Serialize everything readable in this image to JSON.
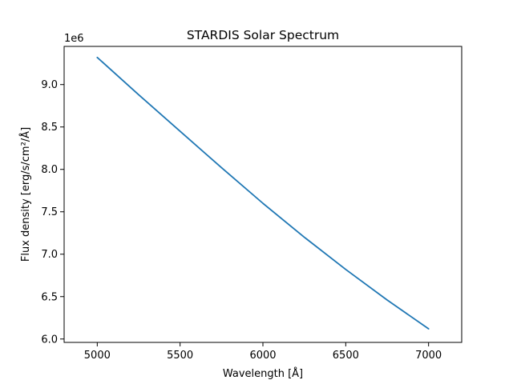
{
  "chart_data": {
    "type": "line",
    "title": "STARDIS Solar Spectrum",
    "xlabel": "Wavelength [Å]",
    "ylabel": "Flux density [erg/s/cm²/Å]",
    "offset_text": "1e6",
    "xlim": [
      4800,
      7200
    ],
    "ylim": [
      5.96,
      9.45
    ],
    "y_scale_factor": 1000000,
    "x_ticks": [
      5000,
      5500,
      6000,
      6500,
      7000
    ],
    "x_tick_labels": [
      "5000",
      "5500",
      "6000",
      "6500",
      "7000"
    ],
    "y_ticks": [
      6.0,
      6.5,
      7.0,
      7.5,
      8.0,
      8.5,
      9.0
    ],
    "y_tick_labels": [
      "6.0",
      "6.5",
      "7.0",
      "7.5",
      "8.0",
      "8.5",
      "9.0"
    ],
    "grid": false,
    "series": [
      {
        "color": "#1f77b4",
        "x": [
          5000,
          5250,
          5500,
          5750,
          6000,
          6250,
          6500,
          6750,
          7000
        ],
        "y": [
          9.32,
          8.88,
          8.45,
          8.02,
          7.6,
          7.2,
          6.82,
          6.46,
          6.12
        ]
      }
    ]
  }
}
